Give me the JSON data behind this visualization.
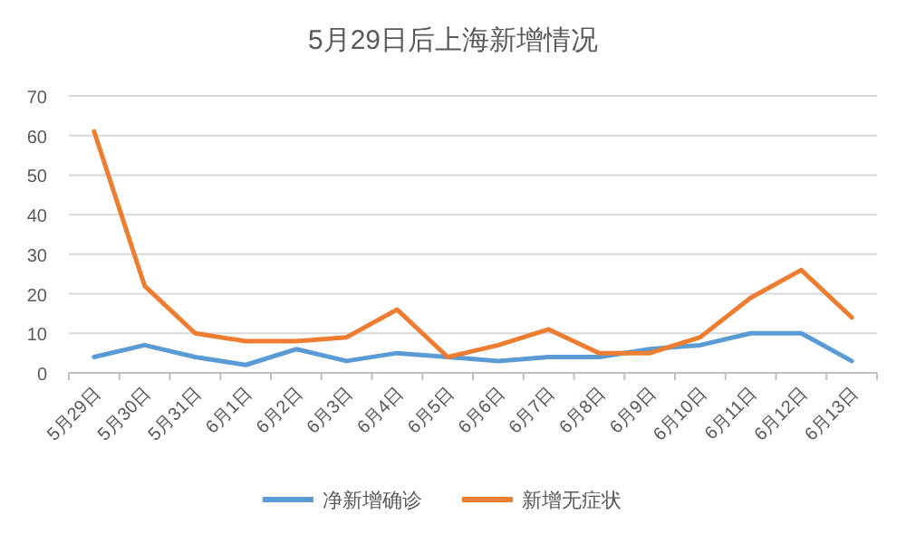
{
  "chart_data": {
    "type": "line",
    "title": "5月29日后上海新增情况",
    "categories": [
      "5月29日",
      "5月30日",
      "5月31日",
      "6月1日",
      "6月2日",
      "6月3日",
      "6月4日",
      "6月5日",
      "6月6日",
      "6月7日",
      "6月8日",
      "6月9日",
      "6月10日",
      "6月11日",
      "6月12日",
      "6月13日"
    ],
    "series": [
      {
        "name": "净新增确诊",
        "color": "#5b9bd5",
        "values": [
          4,
          7,
          4,
          2,
          6,
          3,
          5,
          4,
          3,
          4,
          4,
          6,
          7,
          10,
          10,
          3
        ]
      },
      {
        "name": "新增无症状",
        "color": "#ed7d31",
        "values": [
          61,
          22,
          10,
          8,
          8,
          9,
          16,
          4,
          7,
          11,
          5,
          5,
          9,
          19,
          26,
          14
        ]
      }
    ],
    "ylim": [
      0,
      70
    ],
    "yticks": [
      0,
      10,
      20,
      30,
      40,
      50,
      60,
      70
    ],
    "grid": "y",
    "legend": "bottom",
    "marker": "none",
    "line_style": "solid"
  }
}
